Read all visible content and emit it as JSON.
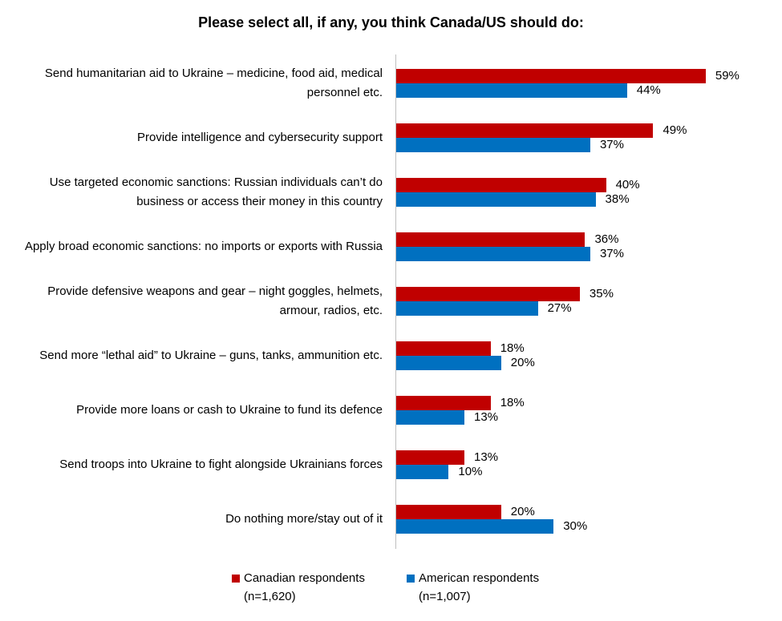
{
  "chart_data": {
    "type": "bar",
    "orientation": "horizontal",
    "title": "Please select all, if any, you think Canada/US should do:",
    "categories": [
      "Send humanitarian aid to Ukraine – medicine, food aid, medical personnel etc.",
      "Provide intelligence and cybersecurity support",
      "Use targeted economic sanctions: Russian individuals can’t do business or access their money in this country",
      "Apply broad economic sanctions: no imports or exports with Russia",
      "Provide defensive weapons and gear – night goggles, helmets, armour, radios, etc.",
      "Send more “lethal aid” to Ukraine – guns, tanks, ammunition etc.",
      "Provide more loans or cash to Ukraine to fund its defence",
      "Send troops into Ukraine to fight alongside Ukrainians forces",
      "Do nothing more/stay out of it"
    ],
    "series": [
      {
        "name": "Canadian respondents (n=1,620)",
        "color": "#c00000",
        "values": [
          59,
          49,
          40,
          36,
          35,
          18,
          18,
          13,
          20
        ],
        "value_labels": [
          "59%",
          "49%",
          "40%",
          "36%",
          "35%",
          "18%",
          "18%",
          "13%",
          "20%"
        ]
      },
      {
        "name": "American respondents (n=1,007)",
        "color": "#0070c0",
        "values": [
          44,
          37,
          38,
          37,
          27,
          20,
          13,
          10,
          30
        ],
        "value_labels": [
          "44%",
          "37%",
          "38%",
          "37%",
          "27%",
          "20%",
          "13%",
          "10%",
          "30%"
        ]
      }
    ],
    "legend": "bottom"
  }
}
